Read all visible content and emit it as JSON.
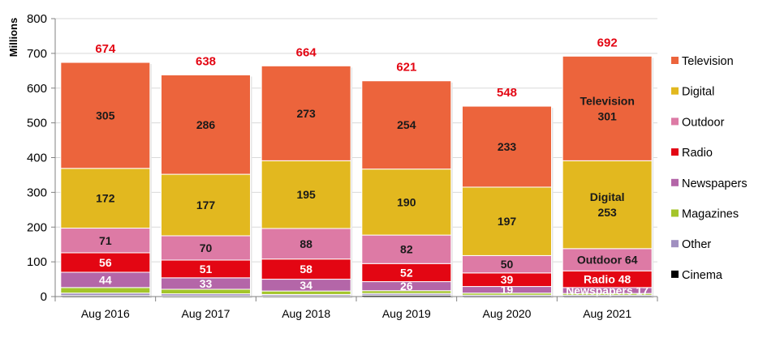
{
  "chart_data": {
    "type": "bar",
    "stacked": true,
    "title": "",
    "xlabel": "",
    "ylabel": "Millions",
    "ylim": [
      0,
      800
    ],
    "yticks": [
      0,
      100,
      200,
      300,
      400,
      500,
      600,
      700,
      800
    ],
    "grid": true,
    "legend_position": "right",
    "categories": [
      "Aug 2016",
      "Aug 2017",
      "Aug 2018",
      "Aug 2019",
      "Aug 2020",
      "Aug 2021"
    ],
    "totals": [
      674,
      638,
      664,
      621,
      548,
      692
    ],
    "series": [
      {
        "name": "Cinema",
        "color": "#000000",
        "values": [
          3,
          2,
          2,
          4,
          0,
          0
        ],
        "labels": [
          "",
          "",
          "",
          "",
          "",
          ""
        ],
        "label_color": "#ffffff"
      },
      {
        "name": "Other",
        "color": "#a08fc0",
        "values": [
          7,
          6,
          4,
          5,
          4,
          4
        ],
        "labels": [
          "",
          "",
          "",
          "",
          "",
          ""
        ],
        "label_color": "#ffffff"
      },
      {
        "name": "Magazines",
        "color": "#a4c52a",
        "values": [
          16,
          13,
          10,
          8,
          6,
          5
        ],
        "labels": [
          "",
          "",
          "",
          "",
          "",
          ""
        ],
        "label_color": "#ffffff"
      },
      {
        "name": "Newspapers",
        "color": "#b466a8",
        "values": [
          44,
          33,
          34,
          26,
          19,
          17
        ],
        "labels": [
          "44",
          "33",
          "34",
          "26",
          "19",
          "Newspapers 17"
        ],
        "label_color": "#ffffff"
      },
      {
        "name": "Radio",
        "color": "#e30613",
        "values": [
          56,
          51,
          58,
          52,
          39,
          48
        ],
        "labels": [
          "56",
          "51",
          "58",
          "52",
          "39",
          "Radio 48"
        ],
        "label_color": "#ffffff"
      },
      {
        "name": "Outdoor",
        "color": "#dd7aa5",
        "values": [
          71,
          70,
          88,
          82,
          50,
          64
        ],
        "labels": [
          "71",
          "70",
          "88",
          "82",
          "50",
          "Outdoor 64"
        ],
        "label_color": "#1a1a1a"
      },
      {
        "name": "Digital",
        "color": "#e2b81f",
        "values": [
          172,
          177,
          195,
          190,
          197,
          253
        ],
        "labels": [
          "172",
          "177",
          "195",
          "190",
          "197",
          "Digital\n253"
        ],
        "label_color": "#1a1a1a"
      },
      {
        "name": "Television",
        "color": "#ec643c",
        "values": [
          305,
          286,
          273,
          254,
          233,
          301
        ],
        "labels": [
          "305",
          "286",
          "273",
          "254",
          "233",
          "Television\n301"
        ],
        "label_color": "#1a1a1a"
      }
    ],
    "legend": [
      "Television",
      "Digital",
      "Outdoor",
      "Radio",
      "Newspapers",
      "Magazines",
      "Other",
      "Cinema"
    ]
  }
}
